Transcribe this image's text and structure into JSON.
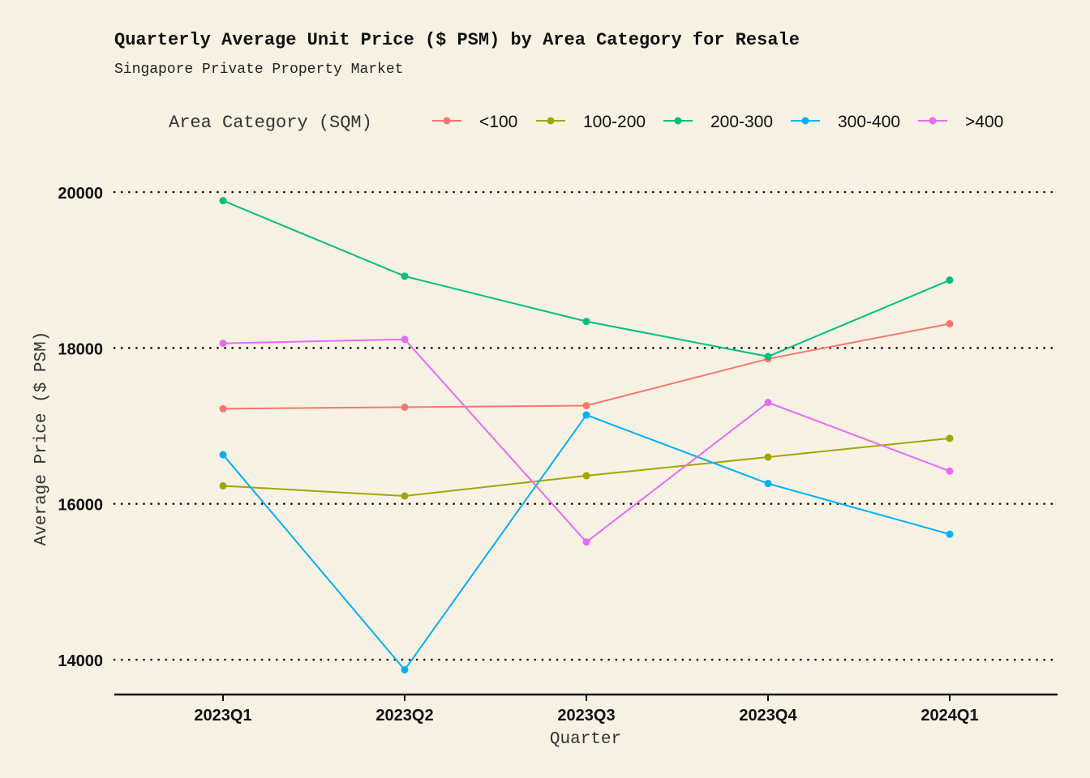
{
  "chart_data": {
    "type": "line",
    "title": "Quarterly Average Unit Price ($ PSM) by Area Category for Resale",
    "subtitle": "Singapore Private Property Market",
    "xlabel": "Quarter",
    "ylabel": "Average Price ($ PSM)",
    "legend_title": "Area Category (SQM)",
    "legend_position": "top",
    "grid": "horizontal-dotted",
    "ylim": [
      13550,
      20150
    ],
    "yticks": [
      14000,
      16000,
      18000,
      20000
    ],
    "categories": [
      "2023Q1",
      "2023Q2",
      "2023Q3",
      "2023Q4",
      "2024Q1"
    ],
    "series": [
      {
        "name": "<100",
        "color": "#f8766d",
        "values": [
          17220,
          17240,
          17260,
          17860,
          18310
        ]
      },
      {
        "name": "100-200",
        "color": "#a3a500",
        "values": [
          16230,
          16100,
          16360,
          16600,
          16840
        ]
      },
      {
        "name": "200-300",
        "color": "#00bf7d",
        "values": [
          19890,
          18920,
          18340,
          17890,
          18870
        ]
      },
      {
        "name": "300-400",
        "color": "#00b0f6",
        "values": [
          16630,
          13870,
          17140,
          16260,
          15610
        ]
      },
      {
        "name": ">400",
        "color": "#e76bf3",
        "values": [
          18060,
          18110,
          15510,
          17300,
          16420
        ]
      }
    ]
  }
}
